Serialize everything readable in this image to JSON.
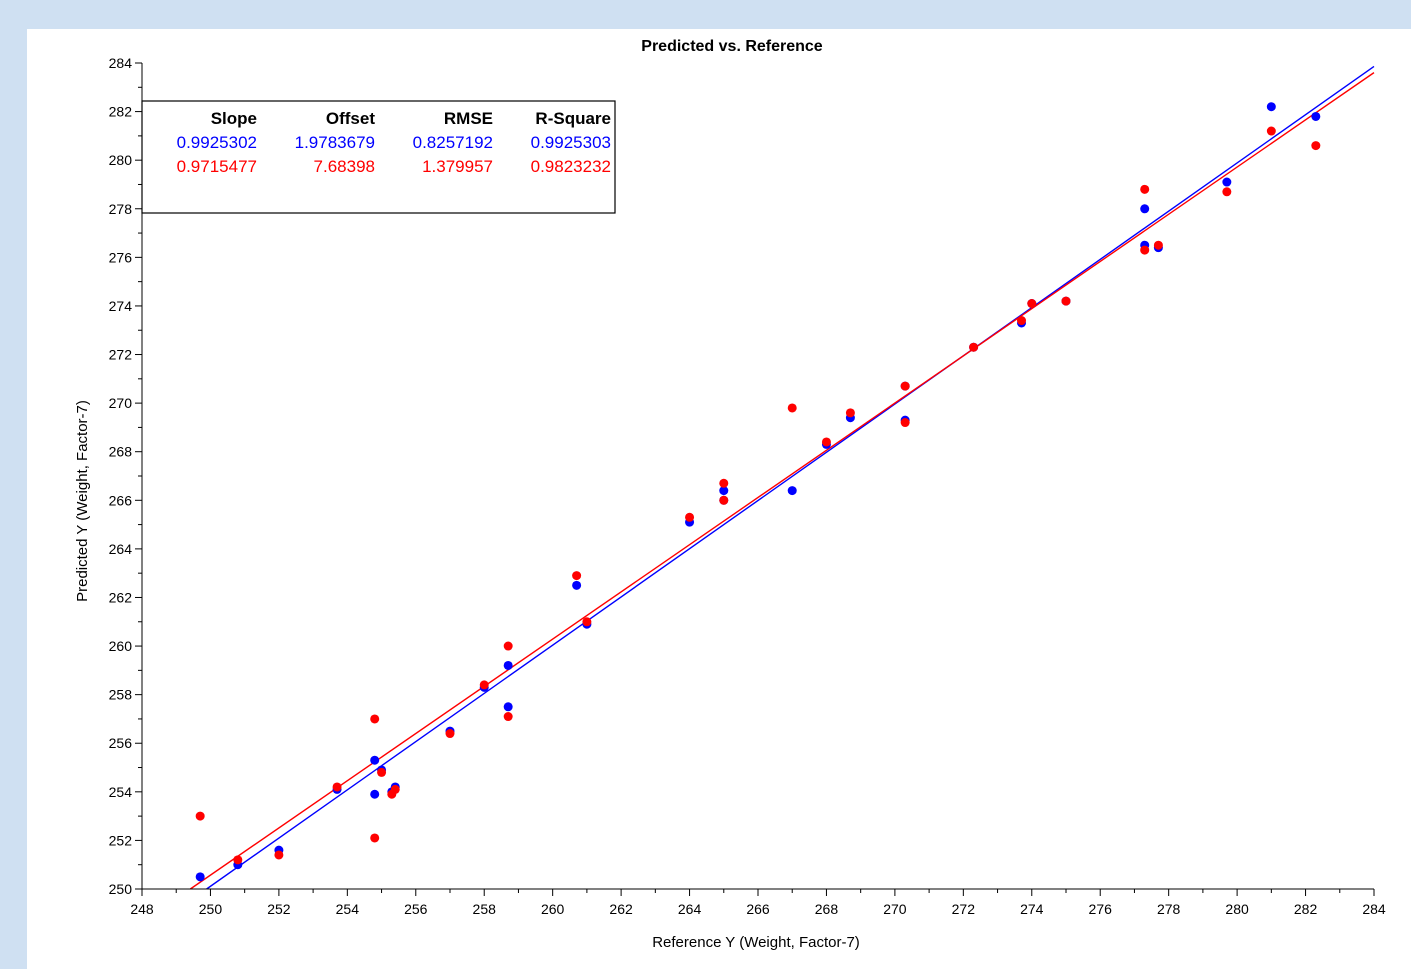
{
  "chart_data": {
    "type": "scatter",
    "title": "Predicted vs. Reference",
    "xlabel": "Reference Y (Weight, Factor-7)",
    "ylabel": "Predicted Y (Weight, Factor-7)",
    "xlim": [
      248,
      284
    ],
    "ylim": [
      250,
      284
    ],
    "x_ticks": [
      248,
      250,
      252,
      254,
      256,
      258,
      260,
      262,
      264,
      266,
      268,
      270,
      272,
      274,
      276,
      278,
      280,
      282,
      284
    ],
    "y_ticks": [
      250,
      252,
      254,
      256,
      258,
      260,
      262,
      264,
      266,
      268,
      270,
      272,
      274,
      276,
      278,
      280,
      282,
      284
    ],
    "grid": false,
    "stats_table": {
      "headers": [
        "Slope",
        "Offset",
        "RMSE",
        "R-Square"
      ],
      "rows": [
        {
          "color": "#0000ff",
          "values": [
            "0.9925302",
            "1.9783679",
            "0.8257192",
            "0.9925303"
          ]
        },
        {
          "color": "#ff0000",
          "values": [
            "0.9715477",
            "7.68398",
            "1.379957",
            "0.9823232"
          ]
        }
      ]
    },
    "series": [
      {
        "color": "#0000ff",
        "regression": {
          "slope": 0.9925302,
          "offset": 1.9783679
        },
        "points": [
          [
            249.7,
            250.5
          ],
          [
            250.8,
            251.0
          ],
          [
            252.0,
            251.6
          ],
          [
            253.7,
            254.1
          ],
          [
            254.8,
            255.3
          ],
          [
            254.8,
            253.9
          ],
          [
            255.0,
            254.9
          ],
          [
            255.3,
            254.0
          ],
          [
            255.4,
            254.2
          ],
          [
            257.0,
            256.5
          ],
          [
            258.0,
            258.3
          ],
          [
            258.7,
            259.2
          ],
          [
            258.7,
            257.5
          ],
          [
            260.7,
            262.5
          ],
          [
            261.0,
            260.9
          ],
          [
            264.0,
            265.1
          ],
          [
            265.0,
            266.4
          ],
          [
            265.0,
            266.0
          ],
          [
            267.0,
            266.4
          ],
          [
            268.0,
            268.3
          ],
          [
            268.7,
            269.4
          ],
          [
            270.3,
            270.7
          ],
          [
            270.3,
            269.3
          ],
          [
            272.3,
            272.3
          ],
          [
            273.7,
            273.3
          ],
          [
            274.0,
            274.1
          ],
          [
            275.0,
            274.2
          ],
          [
            277.3,
            278.0
          ],
          [
            277.3,
            276.5
          ],
          [
            277.7,
            276.4
          ],
          [
            279.7,
            279.1
          ],
          [
            281.0,
            282.2
          ],
          [
            282.3,
            281.8
          ]
        ]
      },
      {
        "color": "#ff0000",
        "regression": {
          "slope": 0.9715477,
          "offset": 7.68398
        },
        "points": [
          [
            249.7,
            253.0
          ],
          [
            250.8,
            251.2
          ],
          [
            252.0,
            251.4
          ],
          [
            253.7,
            254.2
          ],
          [
            254.8,
            257.0
          ],
          [
            254.8,
            252.1
          ],
          [
            255.0,
            254.8
          ],
          [
            255.3,
            253.9
          ],
          [
            255.4,
            254.1
          ],
          [
            257.0,
            256.4
          ],
          [
            258.0,
            258.4
          ],
          [
            258.7,
            260.0
          ],
          [
            258.7,
            257.1
          ],
          [
            260.7,
            262.9
          ],
          [
            261.0,
            261.0
          ],
          [
            264.0,
            265.3
          ],
          [
            265.0,
            266.7
          ],
          [
            265.0,
            266.0
          ],
          [
            267.0,
            269.8
          ],
          [
            268.0,
            268.4
          ],
          [
            268.7,
            269.6
          ],
          [
            270.3,
            270.7
          ],
          [
            270.3,
            269.2
          ],
          [
            272.3,
            272.3
          ],
          [
            273.7,
            273.4
          ],
          [
            274.0,
            274.1
          ],
          [
            275.0,
            274.2
          ],
          [
            277.3,
            278.8
          ],
          [
            277.3,
            276.3
          ],
          [
            277.7,
            276.5
          ],
          [
            279.7,
            278.7
          ],
          [
            281.0,
            281.2
          ],
          [
            282.3,
            280.6
          ]
        ]
      }
    ]
  }
}
